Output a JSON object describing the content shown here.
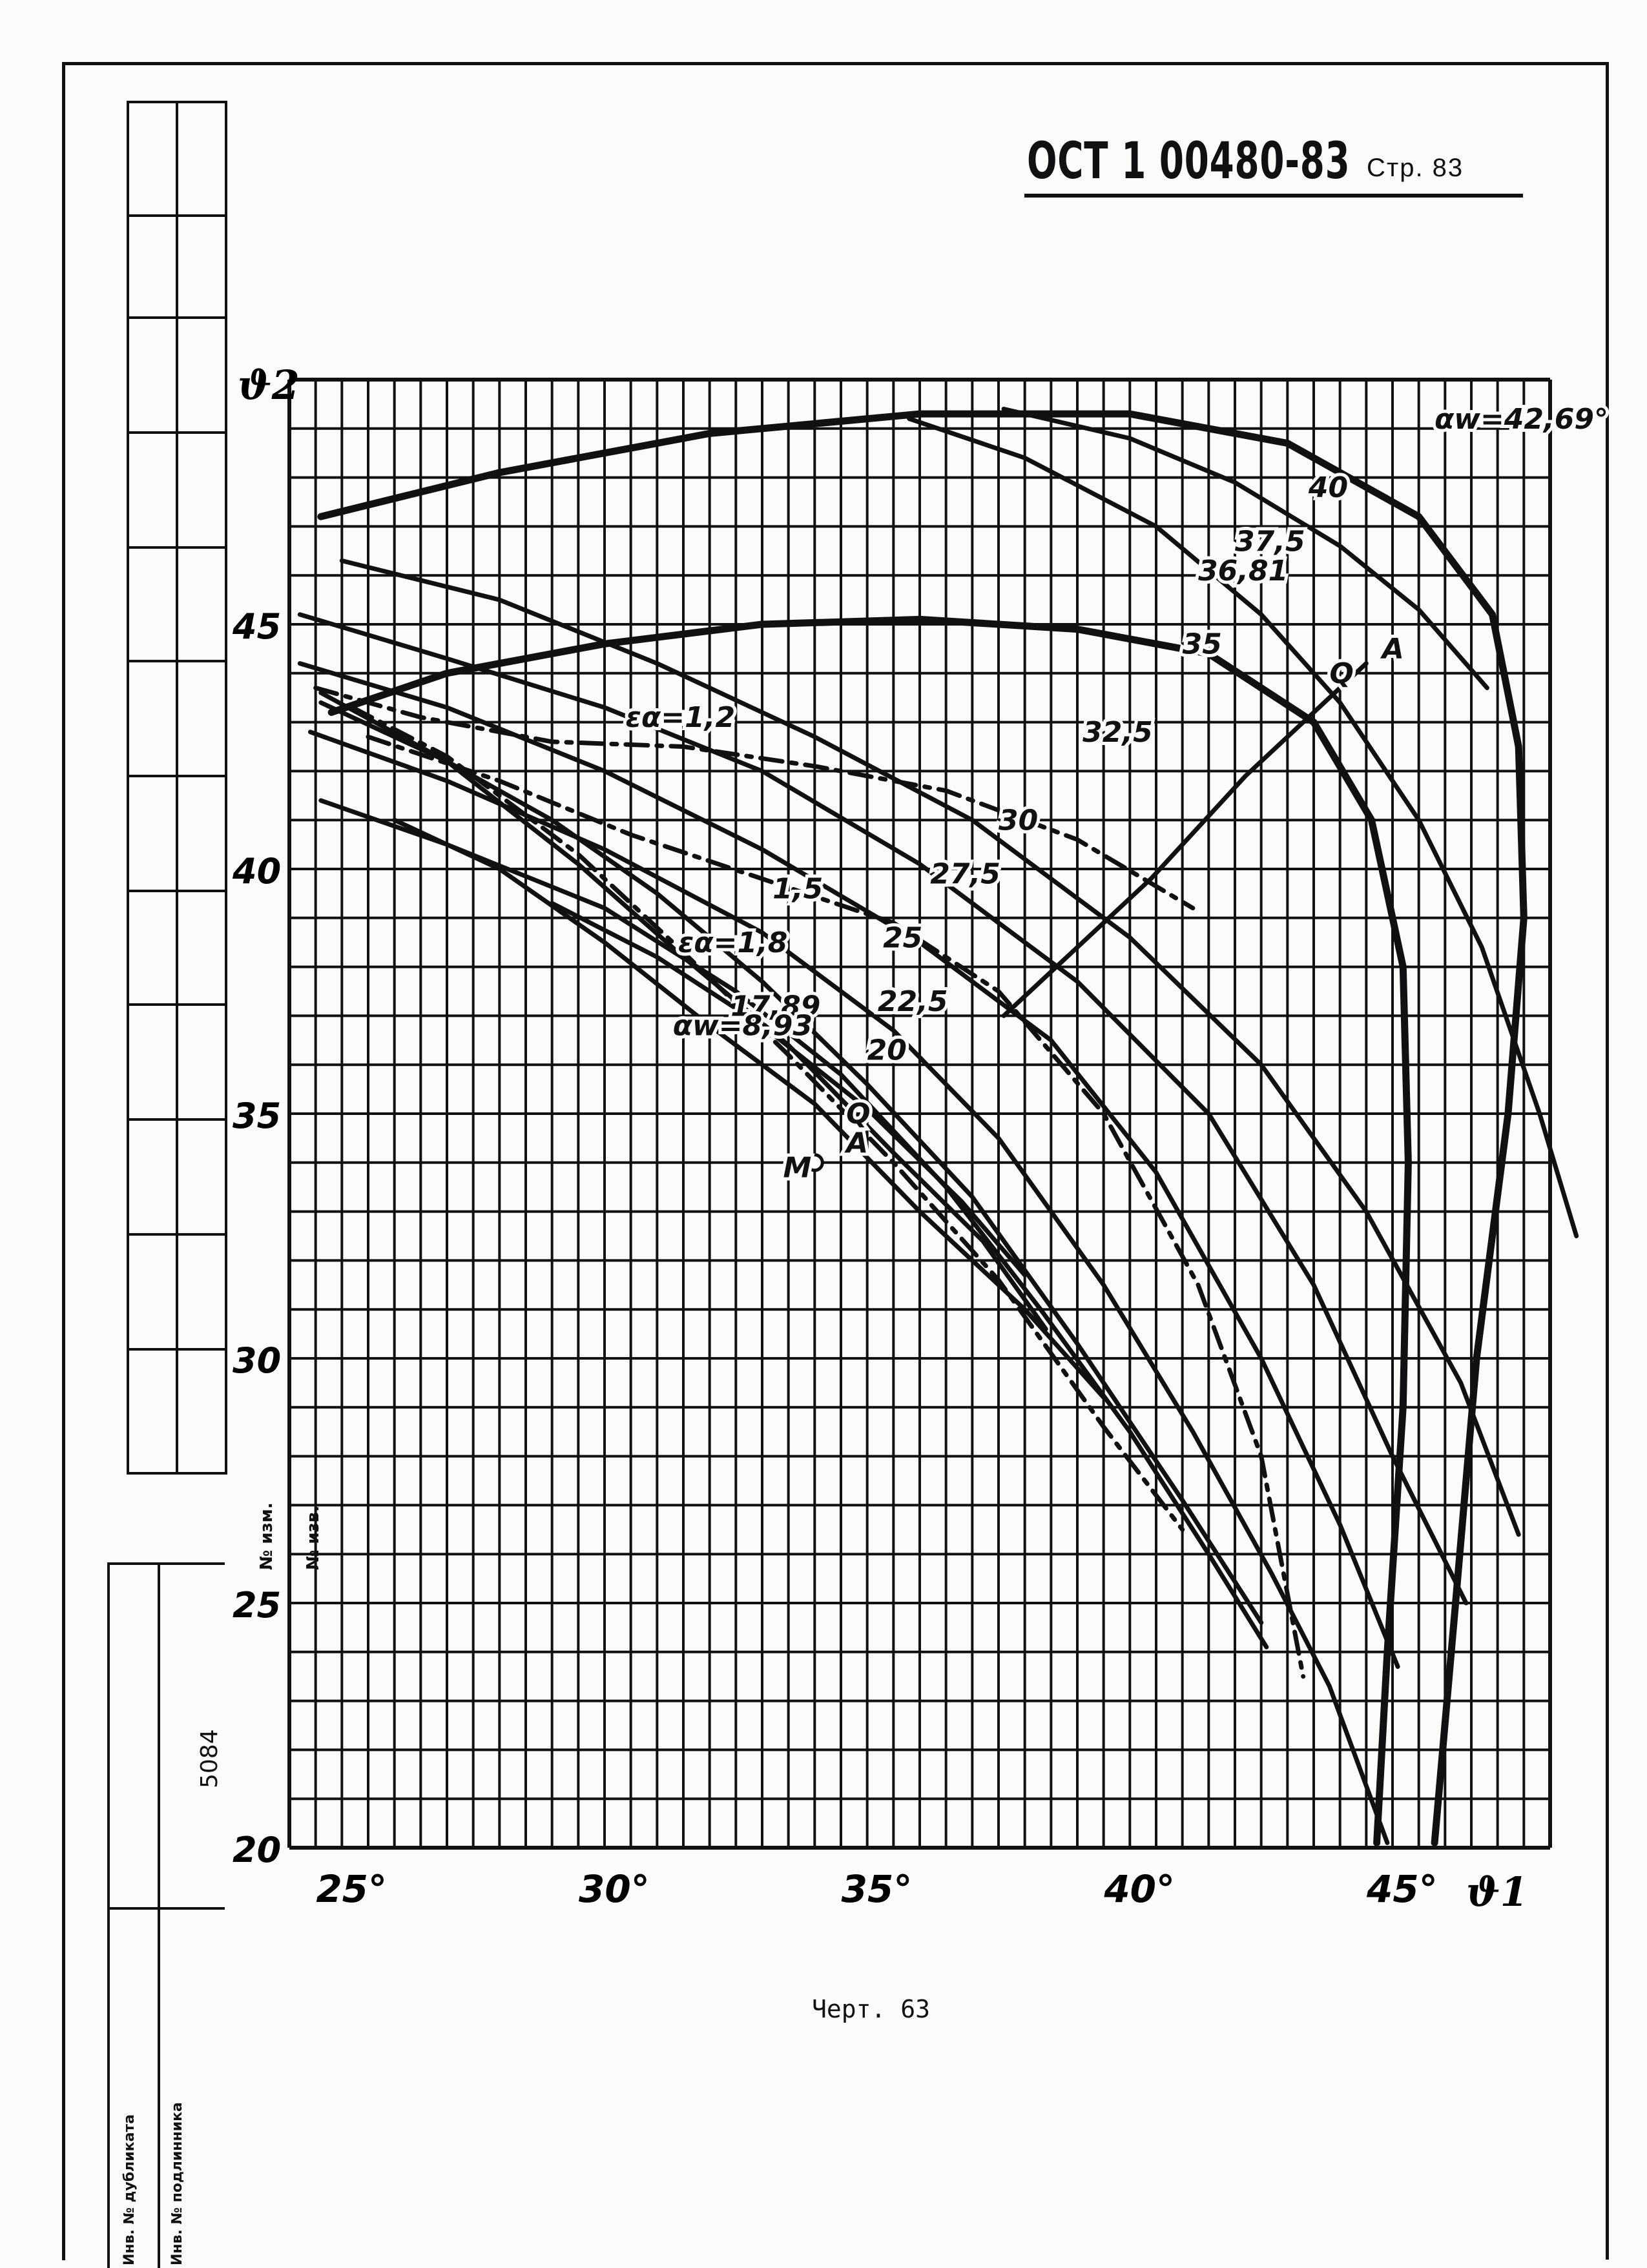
{
  "header": {
    "doc_code": "ОСТ 1 00480-83",
    "page_label": "Стр. 83"
  },
  "caption": "Черт. 63",
  "sidebar": {
    "change_no": "№ изм.",
    "notice_no": "№ изв.",
    "inv_code": "5084",
    "dup_no": "Инв. № дубликата",
    "orig_no": "Инв. № подлинника"
  },
  "chart_data": {
    "type": "line",
    "xlabel": "ϑ1",
    "ylabel": "ϑ2",
    "xlim": [
      24,
      48
    ],
    "ylim": [
      20,
      50
    ],
    "x_ticks": [
      "25°",
      "30°",
      "35°",
      "40°",
      "45°"
    ],
    "x_tick_values": [
      25,
      30,
      35,
      40,
      45
    ],
    "y_ticks": [
      "20",
      "25",
      "30",
      "35",
      "40",
      "45"
    ],
    "y_tick_values": [
      20,
      25,
      30,
      35,
      40,
      45
    ],
    "grid": true,
    "grid_step": 1,
    "series": [
      {
        "name": "αw=42,69°",
        "style": "thick",
        "points": [
          [
            24.6,
            47.2
          ],
          [
            28,
            48.1
          ],
          [
            32,
            48.9
          ],
          [
            36,
            49.3
          ],
          [
            40,
            49.3
          ],
          [
            43,
            48.7
          ],
          [
            45.5,
            47.2
          ],
          [
            46.9,
            45.2
          ],
          [
            47.4,
            42.5
          ],
          [
            47.5,
            39
          ],
          [
            47.2,
            35
          ],
          [
            46.6,
            30
          ],
          [
            46.2,
            25
          ],
          [
            45.8,
            20.1
          ]
        ]
      },
      {
        "name": "36,81",
        "style": "thick",
        "points": [
          [
            24.8,
            43.2
          ],
          [
            27,
            44
          ],
          [
            30,
            44.6
          ],
          [
            33,
            45
          ],
          [
            36,
            45.1
          ],
          [
            39,
            44.9
          ],
          [
            41.5,
            44.4
          ],
          [
            43.5,
            43
          ],
          [
            44.6,
            41
          ],
          [
            45.2,
            38
          ],
          [
            45.3,
            34
          ],
          [
            45.2,
            29
          ],
          [
            44.9,
            24
          ],
          [
            44.7,
            20.1
          ]
        ]
      },
      {
        "name": "40",
        "style": "thin",
        "points": [
          [
            37.6,
            49.4
          ],
          [
            40,
            48.8
          ],
          [
            42,
            47.9
          ],
          [
            44,
            46.6
          ],
          [
            45.5,
            45.3
          ],
          [
            46.8,
            43.7
          ]
        ]
      },
      {
        "name": "37,5",
        "style": "thin",
        "points": [
          [
            35.8,
            49.2
          ],
          [
            38,
            48.4
          ],
          [
            40.5,
            47
          ],
          [
            42.5,
            45.2
          ],
          [
            44,
            43.4
          ],
          [
            45.5,
            41
          ],
          [
            46.7,
            38.4
          ],
          [
            47.8,
            35
          ],
          [
            48.5,
            32.5
          ]
        ]
      },
      {
        "name": "35",
        "style": "thin",
        "points": [
          [
            25,
            46.3
          ],
          [
            28,
            45.5
          ],
          [
            31,
            44.2
          ],
          [
            34,
            42.7
          ],
          [
            37,
            41
          ],
          [
            40,
            38.6
          ],
          [
            42.5,
            36
          ],
          [
            44.5,
            33
          ],
          [
            46.3,
            29.5
          ],
          [
            47.4,
            26.4
          ]
        ]
      },
      {
        "name": "32,5",
        "style": "thin",
        "points": [
          [
            24.2,
            45.2
          ],
          [
            27,
            44.3
          ],
          [
            30,
            43.3
          ],
          [
            33,
            42
          ],
          [
            36,
            40.1
          ],
          [
            39,
            37.7
          ],
          [
            41.5,
            35
          ],
          [
            43.5,
            31.5
          ],
          [
            45,
            28
          ],
          [
            46.4,
            25
          ]
        ]
      },
      {
        "name": "30",
        "style": "thin",
        "points": [
          [
            24.2,
            44.2
          ],
          [
            27,
            43.3
          ],
          [
            30,
            42
          ],
          [
            33,
            40.4
          ],
          [
            36,
            38.5
          ],
          [
            38.5,
            36.5
          ],
          [
            40.5,
            33.8
          ],
          [
            42.5,
            30
          ],
          [
            44,
            26.6
          ],
          [
            45.1,
            23.7
          ]
        ]
      },
      {
        "name": "27,5",
        "style": "thin",
        "points": [
          [
            24.4,
            42.8
          ],
          [
            27,
            41.8
          ],
          [
            30,
            40.4
          ],
          [
            33,
            38.7
          ],
          [
            35.5,
            36.7
          ],
          [
            37.5,
            34.5
          ],
          [
            39.5,
            31.5
          ],
          [
            41.2,
            28.5
          ],
          [
            42.7,
            25.6
          ],
          [
            43.8,
            23.3
          ],
          [
            44.9,
            20.1
          ]
        ]
      },
      {
        "name": "25",
        "style": "thin",
        "points": [
          [
            24.6,
            41.4
          ],
          [
            27,
            40.5
          ],
          [
            30,
            39.2
          ],
          [
            32.5,
            37.5
          ],
          [
            34.5,
            35.8
          ],
          [
            36.5,
            33.5
          ],
          [
            38.3,
            31
          ],
          [
            40,
            28.5
          ],
          [
            41.5,
            26
          ],
          [
            42.6,
            24.1
          ]
        ]
      },
      {
        "name": "22,5",
        "style": "thin",
        "points": [
          [
            24.6,
            43.4
          ],
          [
            27,
            42.2
          ],
          [
            29,
            41
          ],
          [
            31,
            39.5
          ],
          [
            33,
            37.7
          ],
          [
            35,
            35.6
          ],
          [
            37,
            33.3
          ],
          [
            39,
            30.3
          ],
          [
            41,
            27.1
          ],
          [
            42.5,
            24.6
          ]
        ]
      },
      {
        "name": "20",
        "style": "thin",
        "points": [
          [
            26,
            41
          ],
          [
            28,
            40
          ],
          [
            30,
            38.5
          ],
          [
            32,
            36.8
          ],
          [
            34,
            35.2
          ],
          [
            36,
            33
          ],
          [
            38,
            31
          ],
          [
            39.5,
            29.2
          ]
        ]
      },
      {
        "name": "17,89",
        "style": "thin",
        "points": [
          [
            24.6,
            43.6
          ],
          [
            27,
            42.2
          ],
          [
            29.5,
            40.1
          ],
          [
            31.5,
            38.2
          ],
          [
            33.5,
            36.4
          ],
          [
            35.5,
            34.2
          ],
          [
            37.2,
            32.4
          ],
          [
            38.4,
            30.6
          ]
        ]
      },
      {
        "name": "αw=8,93",
        "style": "thin",
        "points": [
          [
            29,
            39.3
          ],
          [
            31,
            38.2
          ],
          [
            33,
            36.8
          ],
          [
            35,
            35.1
          ],
          [
            36.8,
            33.2
          ],
          [
            38,
            31.7
          ]
        ]
      },
      {
        "name": "εα=1,2",
        "style": "dashed",
        "points": [
          [
            24.5,
            43.7
          ],
          [
            26.5,
            43.1
          ],
          [
            29,
            42.6
          ],
          [
            31.5,
            42.5
          ],
          [
            34,
            42.1
          ],
          [
            36.5,
            41.6
          ],
          [
            39,
            40.6
          ],
          [
            41.2,
            39.2
          ]
        ]
      },
      {
        "name": "εα=1,5",
        "style": "dashed",
        "points": [
          [
            25.5,
            42.7
          ],
          [
            28,
            41.8
          ],
          [
            30.5,
            40.7
          ],
          [
            33,
            39.8
          ],
          [
            35.5,
            38.9
          ],
          [
            37.5,
            37.5
          ],
          [
            39.5,
            35
          ],
          [
            41.3,
            31.5
          ],
          [
            42.5,
            28
          ],
          [
            43.3,
            23.5
          ]
        ]
      },
      {
        "name": "εα=1,8",
        "style": "dashed",
        "points": [
          [
            25.2,
            43.3
          ],
          [
            27,
            42.3
          ],
          [
            29.5,
            40.3
          ],
          [
            31.5,
            38.3
          ],
          [
            33.5,
            36.2
          ],
          [
            35.5,
            34
          ],
          [
            37.5,
            31.6
          ],
          [
            39.5,
            28.6
          ],
          [
            41,
            26.5
          ]
        ]
      },
      {
        "name": "Q-A line",
        "style": "thin",
        "points": [
          [
            37.6,
            37
          ],
          [
            40.4,
            39.8
          ],
          [
            42.2,
            41.9
          ],
          [
            43.4,
            43.1
          ],
          [
            44.5,
            44.2
          ]
        ]
      }
    ],
    "annotations": [
      {
        "text": "αw=42,69°",
        "x": 45.8,
        "y": 49.0
      },
      {
        "text": "40",
        "x": 43.4,
        "y": 47.6
      },
      {
        "text": "37,5",
        "x": 42.0,
        "y": 46.5
      },
      {
        "text": "36,81",
        "x": 41.3,
        "y": 45.9
      },
      {
        "text": "35",
        "x": 41.0,
        "y": 44.4
      },
      {
        "text": "32,5",
        "x": 39.1,
        "y": 42.6
      },
      {
        "text": "30",
        "x": 37.5,
        "y": 40.8
      },
      {
        "text": "27,5",
        "x": 36.2,
        "y": 39.7
      },
      {
        "text": "25",
        "x": 35.3,
        "y": 38.4
      },
      {
        "text": "22,5",
        "x": 35.2,
        "y": 37.1
      },
      {
        "text": "20",
        "x": 35.0,
        "y": 36.1
      },
      {
        "text": "17,89",
        "x": 32.4,
        "y": 37.0
      },
      {
        "text": "αw=8,93",
        "x": 31.3,
        "y": 36.6
      },
      {
        "text": "εα=1,2",
        "x": 30.4,
        "y": 42.9
      },
      {
        "text": "1,5",
        "x": 33.2,
        "y": 39.4
      },
      {
        "text": "εα=1,8",
        "x": 31.4,
        "y": 38.3
      },
      {
        "text": "Q",
        "x": 43.8,
        "y": 43.8
      },
      {
        "text": "A",
        "x": 44.8,
        "y": 44.3
      },
      {
        "text": "Q",
        "x": 34.6,
        "y": 34.8
      },
      {
        "text": "A",
        "x": 34.6,
        "y": 34.2
      },
      {
        "text": "M",
        "x": 33.4,
        "y": 33.7
      }
    ],
    "markers": [
      {
        "label": "M",
        "x": 34.0,
        "y": 34.0
      }
    ]
  }
}
